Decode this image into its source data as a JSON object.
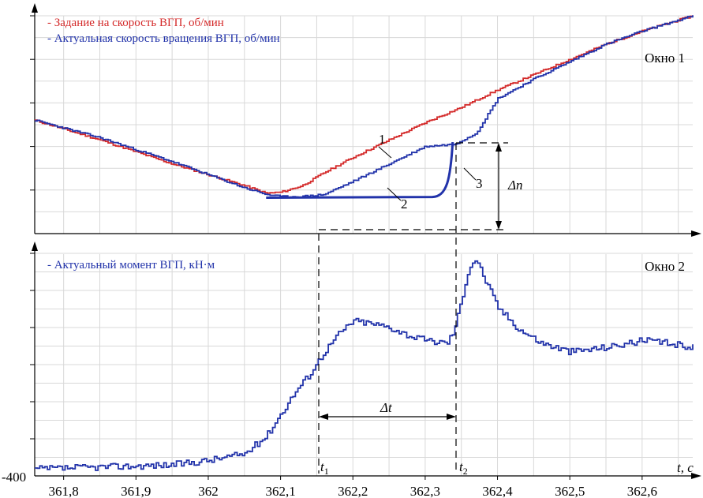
{
  "chart_data": [
    {
      "type": "line",
      "window_label": "Окно 1",
      "xlim": [
        361.76,
        362.67
      ],
      "legend_position": "top-left",
      "series": [
        {
          "name": "Задание на скорость ВГП, об/мин",
          "color": "#d42a2a",
          "x": [
            361.76,
            361.85,
            361.95,
            362.05,
            362.08,
            362.1,
            362.13,
            362.16,
            362.2,
            362.25,
            362.3,
            362.35,
            362.4,
            362.45,
            362.5,
            362.55,
            362.6,
            362.67
          ],
          "y": [
            0.52,
            0.43,
            0.32,
            0.22,
            0.185,
            0.19,
            0.22,
            0.28,
            0.35,
            0.43,
            0.51,
            0.58,
            0.66,
            0.73,
            0.8,
            0.87,
            0.93,
            1.0
          ]
        },
        {
          "name": "Актуальная скорость вращения ВГП, об/мин",
          "color": "#2233aa",
          "x": [
            361.76,
            361.85,
            361.95,
            362.05,
            362.08,
            362.1,
            362.13,
            362.16,
            362.2,
            362.25,
            362.3,
            362.34,
            362.37,
            362.4,
            362.45,
            362.5,
            362.55,
            362.6,
            362.67
          ],
          "y": [
            0.52,
            0.44,
            0.33,
            0.21,
            0.18,
            0.17,
            0.17,
            0.18,
            0.24,
            0.32,
            0.4,
            0.41,
            0.46,
            0.62,
            0.71,
            0.79,
            0.87,
            0.93,
            1.0
          ]
        }
      ],
      "annotations": [
        "1",
        "2",
        "3",
        "Δn"
      ]
    },
    {
      "type": "line",
      "window_label": "Окно 2",
      "xlabel": "t, с",
      "xlim": [
        361.76,
        362.67
      ],
      "x_ticks": [
        "361,8",
        "361,9",
        "362",
        "362,1",
        "362,2",
        "362,3",
        "362,4",
        "362,5",
        "362,6"
      ],
      "y_min_label": "-400",
      "legend_position": "top-left",
      "series": [
        {
          "name": "Актуальный момент ВГП, кН·м",
          "color": "#2233aa",
          "x": [
            361.76,
            361.85,
            361.95,
            362.0,
            362.05,
            362.08,
            362.1,
            362.12,
            362.14,
            362.16,
            362.18,
            362.2,
            362.22,
            362.25,
            362.28,
            362.3,
            362.33,
            362.34,
            362.35,
            362.36,
            362.37,
            362.38,
            362.4,
            362.43,
            362.46,
            362.5,
            362.55,
            362.6,
            362.63,
            362.67
          ],
          "y": [
            0.03,
            0.04,
            0.05,
            0.07,
            0.1,
            0.18,
            0.28,
            0.38,
            0.46,
            0.56,
            0.64,
            0.7,
            0.69,
            0.67,
            0.63,
            0.61,
            0.6,
            0.66,
            0.8,
            0.94,
            0.98,
            0.9,
            0.76,
            0.66,
            0.6,
            0.56,
            0.58,
            0.61,
            0.6,
            0.58
          ]
        }
      ],
      "annotations": [
        "Δt",
        "t1",
        "t2"
      ]
    }
  ]
}
